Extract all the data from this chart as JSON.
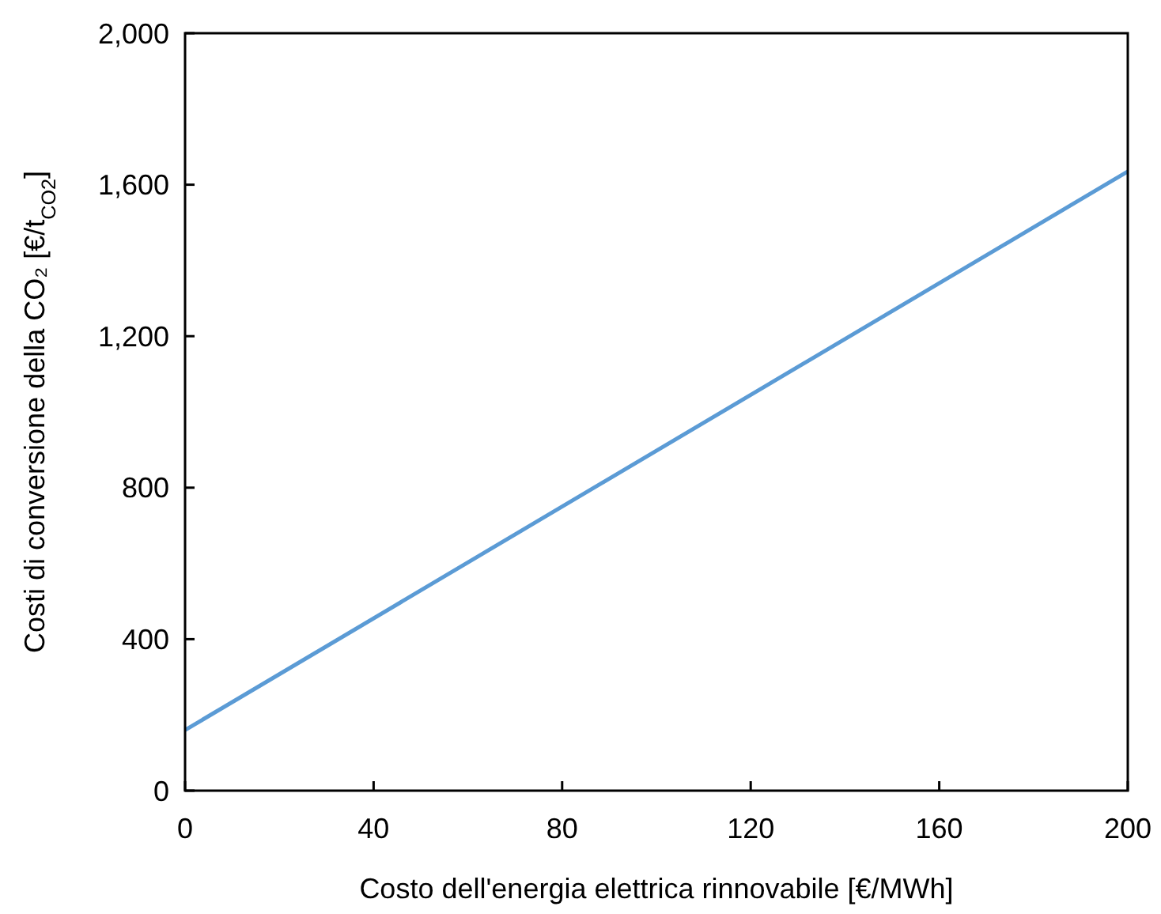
{
  "chart_data": {
    "type": "line",
    "xlabel": "Costo dell'energia elettrica rinnovabile [€/MWh]",
    "ylabel": "Costi di conversione della CO₂ [€/t$_{CO2}$]",
    "x": [
      0,
      200
    ],
    "series": [
      {
        "color": "#5b9bd5",
        "values": [
          160,
          1635
        ]
      }
    ],
    "xlim": [
      0,
      200
    ],
    "xticks": [
      0,
      40,
      80,
      120,
      160,
      200
    ],
    "ylim": [
      0,
      2000
    ],
    "yticks": [
      0,
      {
        "value": 400,
        "label": "400"
      },
      {
        "value": 800,
        "label": "800"
      },
      {
        "value": 1200,
        "label": "1,200"
      },
      {
        "value": 1600,
        "label": "1,600"
      },
      {
        "value": 2000,
        "label": "2,000"
      }
    ],
    "grid": false,
    "marker": "none",
    "line_style": "solid"
  }
}
